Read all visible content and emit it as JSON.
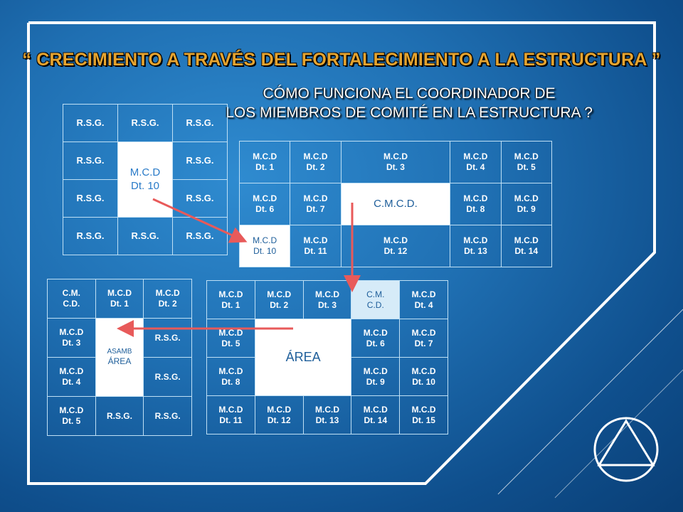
{
  "title": "“ CRECIMIENTO A TRAVÉS DEL FORTALECIMIENTO A LA ESTRUCTURA ”",
  "subtitle_line1": "CÓMO FUNCIONA EL COORDINADOR DE",
  "subtitle_line2": "LOS MIEMBROS DE COMITÉ EN LA ESTRUCTURA ?",
  "grid1": {
    "r0": [
      "R.S.G.",
      "R.S.G.",
      "R.S.G."
    ],
    "r1": [
      "R.S.G.",
      "M.C.D",
      "Dt. 10",
      "R.S.G."
    ],
    "r2": [
      "R.S.G.",
      "R.S.G."
    ],
    "r3": [
      "R.S.G.",
      "R.S.G.",
      "R.S.G."
    ]
  },
  "grid2": {
    "r0": [
      [
        "M.C.D",
        "Dt. 1"
      ],
      [
        "M.C.D",
        "Dt. 2"
      ],
      [
        "M.C.D",
        "Dt. 3"
      ],
      [
        "M.C.D",
        "Dt. 4"
      ],
      [
        "M.C.D",
        "Dt. 5"
      ]
    ],
    "r1": [
      [
        "M.C.D",
        "Dt. 6"
      ],
      [
        "M.C.D",
        "Dt. 7"
      ],
      [
        "C.M.C.D."
      ],
      [
        "M.C.D",
        "Dt. 8"
      ],
      [
        "M.C.D",
        "Dt. 9"
      ]
    ],
    "r2": [
      [
        "M.C.D",
        "Dt. 10"
      ],
      [
        "M.C.D",
        "Dt. 11"
      ],
      [
        "M.C.D",
        "Dt. 12"
      ],
      [
        "M.C.D",
        "Dt. 13"
      ],
      [
        "M.C.D",
        "Dt. 14"
      ]
    ]
  },
  "grid3": {
    "r0": [
      [
        "C.M.",
        "C.D."
      ],
      [
        "M.C.D",
        "Dt. 1"
      ],
      [
        "M.C.D",
        "Dt. 2"
      ]
    ],
    "r1": [
      [
        "M.C.D",
        "Dt. 3"
      ],
      [
        "ASAMB",
        "ÁREA"
      ],
      [
        "R.S.G."
      ]
    ],
    "r2": [
      [
        "M.C.D",
        "Dt. 4"
      ],
      [
        "R.S.G."
      ]
    ],
    "r3": [
      [
        "M.C.D",
        "Dt. 5"
      ],
      [
        "R.S.G."
      ],
      [
        "R.S.G."
      ]
    ]
  },
  "grid4": {
    "r0": [
      [
        "M.C.D",
        "Dt. 1"
      ],
      [
        "M.C.D",
        "Dt. 2"
      ],
      [
        "M.C.D",
        "Dt. 3"
      ],
      [
        "C.M.",
        "C.D."
      ],
      [
        "M.C.D",
        "Dt. 4"
      ]
    ],
    "r1": [
      [
        "M.C.D",
        "Dt. 5"
      ],
      [
        "ÁREA"
      ],
      [
        "M.C.D",
        "Dt. 6"
      ],
      [
        "M.C.D",
        "Dt. 7"
      ]
    ],
    "r2": [
      [
        "M.C.D",
        "Dt. 8"
      ],
      [
        "M.C.D",
        "Dt. 9"
      ],
      [
        "M.C.D",
        "Dt. 10"
      ]
    ],
    "r3": [
      [
        "M.C.D",
        "Dt. 11"
      ],
      [
        "M.C.D",
        "Dt. 12"
      ],
      [
        "M.C.D",
        "Dt. 13"
      ],
      [
        "M.C.D",
        "Dt. 14"
      ],
      [
        "M.C.D",
        "Dt. 15"
      ]
    ]
  },
  "colors": {
    "title": "#e6a42f",
    "arrow": "#e85a5a",
    "frame": "#ffffff",
    "background": "#1f6fb2"
  },
  "icons": {
    "logo": "circle-triangle-icon"
  }
}
